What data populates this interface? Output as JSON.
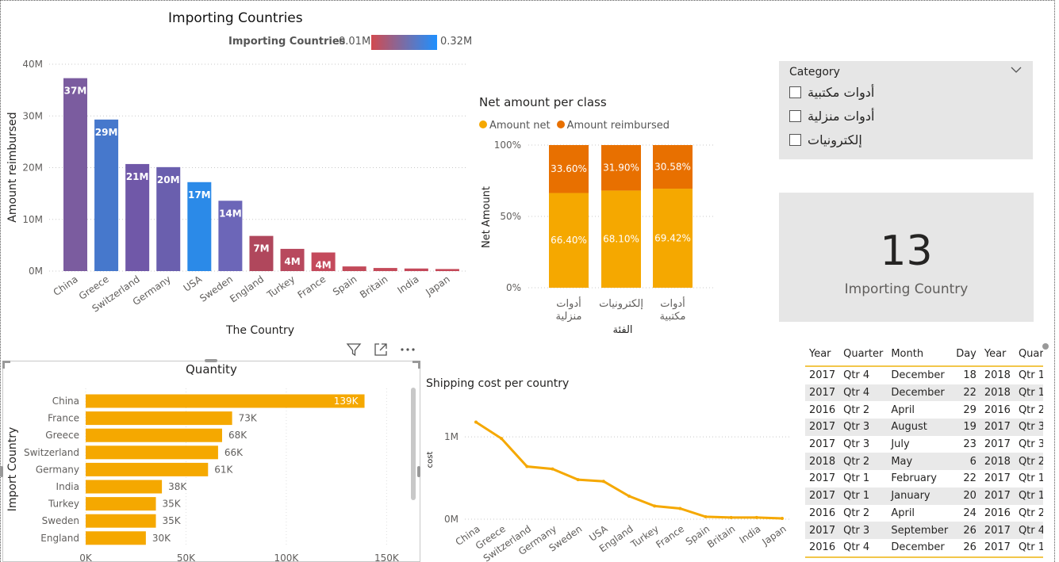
{
  "importing_chart": {
    "title": "Importing Countries",
    "legend_label": "Importing Countries",
    "legend_min": "0.01M",
    "legend_max": "0.32M",
    "xlabel": "The Country",
    "ylabel": "Amount reimbursed",
    "y_ticks": [
      "0M",
      "10M",
      "20M",
      "30M",
      "40M"
    ],
    "chart_data": {
      "type": "bar",
      "title": "Importing Countries",
      "xlabel": "The Country",
      "ylabel": "Amount reimbursed",
      "ylim": [
        0,
        40
      ],
      "unit": "M",
      "categories": [
        "China",
        "Greece",
        "Switzerland",
        "Germany",
        "USA",
        "Sweden",
        "England",
        "Turkey",
        "France",
        "Spain",
        "Britain",
        "India",
        "Japan"
      ],
      "values": [
        37.3,
        29.3,
        20.7,
        20.1,
        17.2,
        13.6,
        6.8,
        4.3,
        3.6,
        0.9,
        0.6,
        0.5,
        0.4
      ],
      "data_labels": [
        "37M",
        "29M",
        "21M",
        "20M",
        "17M",
        "14M",
        "7M",
        "4M",
        "4M",
        "",
        "",
        "",
        ""
      ],
      "colors": [
        "#7b5c9f",
        "#4678cc",
        "#7058a8",
        "#6a5fae",
        "#2b8ae8",
        "#6c66b8",
        "#b0475c",
        "#b8495e",
        "#c44a5c",
        "#c24a5a",
        "#c44a5a",
        "#c4485a",
        "#c44858"
      ]
    }
  },
  "net_chart": {
    "title": "Net amount per class",
    "legend": [
      {
        "name": "Amount net",
        "color": "#f5a800"
      },
      {
        "name": "Amount reimbursed",
        "color": "#e87000"
      }
    ],
    "ylabel": "Net Amount",
    "xlabel": "الفئة",
    "y_ticks": [
      "0%",
      "50%",
      "100%"
    ],
    "chart_data": {
      "type": "bar",
      "stacked": "100%",
      "categories": [
        [
          "أدوات",
          "منزلية"
        ],
        [
          "إلكترونيات"
        ],
        [
          "أدوات",
          "مكتبية"
        ]
      ],
      "series": [
        {
          "name": "Amount net",
          "values": [
            66.4,
            68.1,
            69.42
          ],
          "labels": [
            "66.40%",
            "68.10%",
            "69.42%"
          ]
        },
        {
          "name": "Amount reimbursed",
          "values": [
            33.6,
            31.9,
            30.58
          ],
          "labels": [
            "33.60%",
            "31.90%",
            "30.58%"
          ]
        }
      ],
      "ylim": [
        0,
        100
      ]
    }
  },
  "slicer": {
    "header": "Category",
    "options": [
      "أدوات مكتبية",
      "أدوات منزلية",
      "إلكترونيات"
    ]
  },
  "card": {
    "value": "13",
    "label": "Importing Country"
  },
  "quantity_chart": {
    "title": "Quantity",
    "ylabel": "Import Country",
    "x_ticks": [
      "0K",
      "50K",
      "100K",
      "150K"
    ],
    "chart_data": {
      "type": "bar",
      "orientation": "horizontal",
      "categories": [
        "China",
        "France",
        "Greece",
        "Switzerland",
        "Germany",
        "India",
        "Turkey",
        "Sweden",
        "England"
      ],
      "values": [
        139,
        73,
        68,
        66,
        61,
        38,
        35,
        35,
        30
      ],
      "labels": [
        "139K",
        "73K",
        "68K",
        "66K",
        "61K",
        "38K",
        "35K",
        "35K",
        "30K"
      ],
      "xlim": [
        0,
        155
      ],
      "unit": "K"
    }
  },
  "shipping_chart": {
    "title": "Shipping cost per country",
    "ylabel": "cost",
    "y_ticks": [
      "0M",
      "1M"
    ],
    "chart_data": {
      "type": "line",
      "categories": [
        "China",
        "Greece",
        "Switzerland",
        "Germany",
        "Sweden",
        "USA",
        "England",
        "Turkey",
        "France",
        "Spain",
        "Britain",
        "India",
        "Japan"
      ],
      "values": [
        1.18,
        0.98,
        0.64,
        0.61,
        0.48,
        0.46,
        0.28,
        0.16,
        0.13,
        0.03,
        0.02,
        0.02,
        0.01
      ],
      "ylim": [
        0,
        1.3
      ],
      "unit": "M",
      "color": "#f5a800"
    }
  },
  "table": {
    "headers": [
      "Year",
      "Quarter",
      "Month",
      "Day",
      "Year",
      "Quarter"
    ],
    "rows": [
      [
        "2017",
        "Qtr 4",
        "December",
        "18",
        "2018",
        "Qtr 1"
      ],
      [
        "2017",
        "Qtr 4",
        "December",
        "22",
        "2018",
        "Qtr 1"
      ],
      [
        "2016",
        "Qtr 2",
        "April",
        "29",
        "2016",
        "Qtr 2"
      ],
      [
        "2017",
        "Qtr 3",
        "August",
        "19",
        "2017",
        "Qtr 3"
      ],
      [
        "2017",
        "Qtr 3",
        "July",
        "23",
        "2017",
        "Qtr 3"
      ],
      [
        "2018",
        "Qtr 2",
        "May",
        "6",
        "2018",
        "Qtr 2"
      ],
      [
        "2017",
        "Qtr 1",
        "February",
        "22",
        "2017",
        "Qtr 1"
      ],
      [
        "2017",
        "Qtr 1",
        "January",
        "20",
        "2017",
        "Qtr 1"
      ],
      [
        "2016",
        "Qtr 2",
        "April",
        "24",
        "2016",
        "Qtr 2"
      ],
      [
        "2017",
        "Qtr 3",
        "September",
        "26",
        "2017",
        "Qtr 4"
      ],
      [
        "2016",
        "Qtr 4",
        "December",
        "26",
        "2017",
        "Qtr 1"
      ]
    ]
  },
  "toolbar": {
    "filter_icon": "filter-icon",
    "focus_icon": "focus-mode-icon",
    "more_icon": "more-options-icon"
  }
}
